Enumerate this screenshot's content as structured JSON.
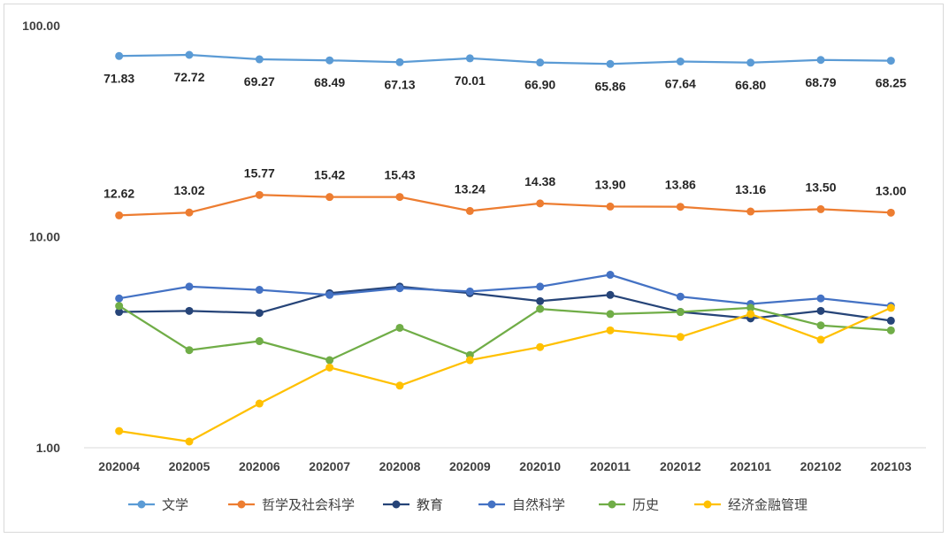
{
  "chart_data": {
    "type": "line",
    "title": "",
    "xlabel": "",
    "ylabel": "",
    "yscale": "log",
    "ylim": [
      1,
      100
    ],
    "y_ticks": [
      {
        "value": 1,
        "label": "1.00"
      },
      {
        "value": 10,
        "label": "10.00"
      },
      {
        "value": 100,
        "label": "100.00"
      }
    ],
    "grid": false,
    "legend_position": "bottom",
    "categories": [
      "202004",
      "202005",
      "202006",
      "202007",
      "202008",
      "202009",
      "202010",
      "202011",
      "202012",
      "202101",
      "202102",
      "202103"
    ],
    "series": [
      {
        "name": "文学",
        "color": "#5B9BD5",
        "labels": "below",
        "values": [
          71.83,
          72.72,
          69.27,
          68.49,
          67.13,
          70.01,
          66.9,
          65.86,
          67.64,
          66.8,
          68.79,
          68.25
        ],
        "value_labels": [
          "71.83",
          "72.72",
          "69.27",
          "68.49",
          "67.13",
          "70.01",
          "66.90",
          "65.86",
          "67.64",
          "66.80",
          "68.79",
          "68.25"
        ]
      },
      {
        "name": "哲学及社会科学",
        "color": "#ED7D31",
        "labels": "above",
        "values": [
          12.62,
          13.02,
          15.77,
          15.42,
          15.43,
          13.24,
          14.38,
          13.9,
          13.86,
          13.16,
          13.5,
          13.0
        ],
        "value_labels": [
          "12.62",
          "13.02",
          "15.77",
          "15.42",
          "15.43",
          "13.24",
          "14.38",
          "13.90",
          "13.86",
          "13.16",
          "13.50",
          "13.00"
        ]
      },
      {
        "name": "教育",
        "color": "#264478",
        "labels": "none",
        "values": [
          4.4,
          4.45,
          4.35,
          5.4,
          5.8,
          5.4,
          4.95,
          5.3,
          4.4,
          4.1,
          4.45,
          4.0
        ]
      },
      {
        "name": "自然科学",
        "color": "#4472C4",
        "labels": "none",
        "values": [
          5.1,
          5.8,
          5.6,
          5.3,
          5.7,
          5.5,
          5.8,
          6.6,
          5.2,
          4.8,
          5.1,
          4.7
        ]
      },
      {
        "name": "历史",
        "color": "#70AD47",
        "labels": "none",
        "values": [
          4.7,
          2.9,
          3.2,
          2.6,
          3.7,
          2.75,
          4.55,
          4.3,
          4.4,
          4.6,
          3.8,
          3.6
        ]
      },
      {
        "name": "经济金融管理",
        "color": "#FFC000",
        "labels": "none",
        "values": [
          1.2,
          1.07,
          1.62,
          2.4,
          1.97,
          2.6,
          3.0,
          3.6,
          3.35,
          4.3,
          3.25,
          4.6
        ]
      }
    ]
  }
}
